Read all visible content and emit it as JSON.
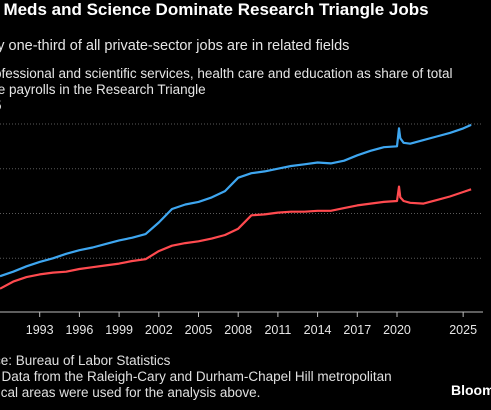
{
  "title": ", Meds and Science Dominate Research Triangle Jobs",
  "subtitle": "ly one-third of all private-sector jobs are in related fields",
  "description": [
    "ofessional and scientific services, health care and education as share of total",
    "te payrolls in the Research Triangle",
    "5"
  ],
  "source": "ce: Bureau of Labor Statistics",
  "notes": [
    ": Data from the Raleigh-Cary and Durham-Chapel Hill metropolitan",
    "tical areas were used for the analysis above."
  ],
  "brand": "Bloom",
  "colors": {
    "background": "#000000",
    "series_blue": "#3ea6f0",
    "series_red": "#ff4a4f",
    "grid": "#5a5a5a"
  },
  "chart_data": {
    "type": "line",
    "xlim": [
      1990,
      2026.5
    ],
    "ylim": [
      14,
      36
    ],
    "grid": true,
    "xticks": [
      1993,
      1996,
      1999,
      2002,
      2005,
      2008,
      2011,
      2014,
      2017,
      2020,
      2025
    ],
    "xtick_labels": [
      "1993",
      "1996",
      "1999",
      "2002",
      "2005",
      "2008",
      "2011",
      "2014",
      "2017",
      "2020",
      "2025"
    ],
    "ygrid": [
      20,
      25,
      30,
      35
    ],
    "series": [
      {
        "color": "#3ea6f0",
        "x": [
          1990,
          1991,
          1992,
          1993,
          1994,
          1995,
          1996,
          1997,
          1998,
          1999,
          2000,
          2001,
          2002,
          2003,
          2004,
          2005,
          2006,
          2007,
          2008,
          2009,
          2010,
          2011,
          2012,
          2013,
          2014,
          2015,
          2016,
          2017,
          2018,
          2019,
          2020.0,
          2020.15,
          2020.25,
          2020.5,
          2021,
          2022,
          2023,
          2024,
          2025,
          2025.6
        ],
        "y": [
          18.0,
          18.5,
          19.1,
          19.6,
          20.0,
          20.5,
          20.9,
          21.2,
          21.6,
          22.0,
          22.3,
          22.7,
          24.0,
          25.5,
          26.0,
          26.3,
          26.8,
          27.5,
          29.0,
          29.5,
          29.7,
          30.0,
          30.3,
          30.5,
          30.7,
          30.6,
          30.9,
          31.5,
          32.0,
          32.4,
          32.5,
          34.5,
          33.4,
          32.9,
          32.8,
          33.2,
          33.6,
          34.0,
          34.5,
          34.9
        ]
      },
      {
        "color": "#ff4a4f",
        "x": [
          1990,
          1991,
          1992,
          1993,
          1994,
          1995,
          1996,
          1997,
          1998,
          1999,
          2000,
          2001,
          2002,
          2003,
          2004,
          2005,
          2006,
          2007,
          2008,
          2009,
          2010,
          2011,
          2012,
          2013,
          2014,
          2015,
          2016,
          2017,
          2018,
          2019,
          2020.0,
          2020.15,
          2020.25,
          2020.5,
          2021,
          2022,
          2023,
          2024,
          2025,
          2025.6
        ],
        "y": [
          16.6,
          17.4,
          17.9,
          18.2,
          18.4,
          18.5,
          18.8,
          19.0,
          19.2,
          19.4,
          19.7,
          19.9,
          20.8,
          21.4,
          21.7,
          21.9,
          22.2,
          22.6,
          23.3,
          24.8,
          24.9,
          25.1,
          25.2,
          25.2,
          25.3,
          25.3,
          25.6,
          25.9,
          26.1,
          26.3,
          26.4,
          28.0,
          26.8,
          26.4,
          26.2,
          26.1,
          26.5,
          26.9,
          27.4,
          27.7
        ]
      }
    ]
  }
}
